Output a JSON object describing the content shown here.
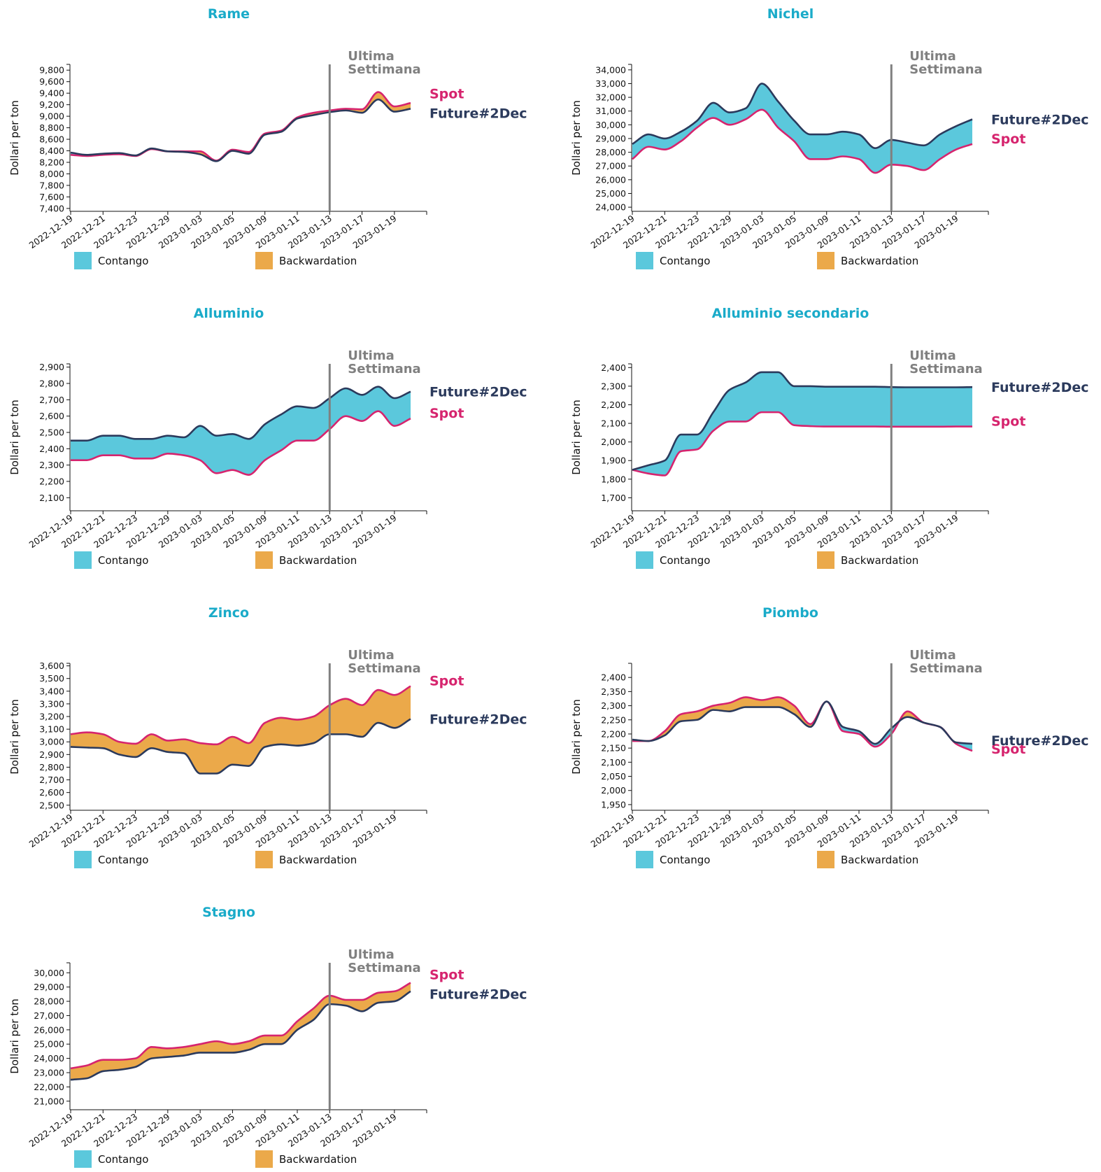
{
  "colors": {
    "title": "#1aabc9",
    "spot": "#d6246e",
    "future": "#2b3a5c",
    "contango": "#5bc8dc",
    "backwardation": "#eba94a",
    "vline": "#808080",
    "axis": "#111111"
  },
  "ylabel": "Dollari per ton",
  "vline_label": [
    "Ultima",
    "Settimana"
  ],
  "legend": [
    "Contango",
    "Backwardation"
  ],
  "series_names": {
    "spot": "Spot",
    "future": "Future#2Dec"
  },
  "chart_data": [
    {
      "type": "area",
      "title": "Rame",
      "x": [
        "2022-12-19",
        "2022-12-20",
        "2022-12-21",
        "2022-12-22",
        "2022-12-23",
        "2022-12-28",
        "2022-12-29",
        "2022-12-30",
        "2023-01-03",
        "2023-01-04",
        "2023-01-05",
        "2023-01-06",
        "2023-01-09",
        "2023-01-10",
        "2023-01-11",
        "2023-01-12",
        "2023-01-13",
        "2023-01-16",
        "2023-01-17",
        "2023-01-18",
        "2023-01-19",
        "2023-01-20"
      ],
      "xticks": [
        "2022-12-19",
        "2022-12-21",
        "2022-12-23",
        "2022-12-29",
        "2023-01-03",
        "2023-01-05",
        "2023-01-09",
        "2023-01-11",
        "2023-01-13",
        "2023-01-17",
        "2023-01-19"
      ],
      "vline_x": "2023-01-13",
      "spot": [
        8330,
        8310,
        8330,
        8340,
        8310,
        8430,
        8390,
        8390,
        8390,
        8230,
        8420,
        8380,
        8700,
        8750,
        8980,
        9060,
        9100,
        9130,
        9120,
        9420,
        9170,
        9230
      ],
      "future": [
        8370,
        8330,
        8350,
        8360,
        8320,
        8440,
        8390,
        8380,
        8340,
        8220,
        8400,
        8350,
        8680,
        8730,
        8960,
        9020,
        9070,
        9100,
        9060,
        9290,
        9080,
        9130
      ],
      "ylim": [
        7350,
        9900
      ],
      "yticks": [
        7400,
        7600,
        7800,
        8000,
        8200,
        8400,
        8600,
        8800,
        9000,
        9200,
        9400,
        9600,
        9800
      ]
    },
    {
      "type": "area",
      "title": "Nichel",
      "x": [
        "2022-12-19",
        "2022-12-20",
        "2022-12-21",
        "2022-12-22",
        "2022-12-23",
        "2022-12-28",
        "2022-12-29",
        "2022-12-30",
        "2023-01-03",
        "2023-01-04",
        "2023-01-05",
        "2023-01-06",
        "2023-01-09",
        "2023-01-10",
        "2023-01-11",
        "2023-01-12",
        "2023-01-13",
        "2023-01-16",
        "2023-01-17",
        "2023-01-18",
        "2023-01-19",
        "2023-01-20"
      ],
      "xticks": [
        "2022-12-19",
        "2022-12-21",
        "2022-12-23",
        "2022-12-29",
        "2023-01-03",
        "2023-01-05",
        "2023-01-09",
        "2023-01-11",
        "2023-01-13",
        "2023-01-17",
        "2023-01-19"
      ],
      "vline_x": "2023-01-13",
      "spot": [
        27500,
        28400,
        28200,
        28800,
        29800,
        30500,
        30000,
        30400,
        31100,
        29800,
        28800,
        27500,
        27500,
        27700,
        27500,
        26500,
        27100,
        27000,
        26700,
        27500,
        28200,
        28600
      ],
      "future": [
        28600,
        29300,
        29000,
        29500,
        30300,
        31600,
        30900,
        31200,
        33000,
        31700,
        30300,
        29300,
        29300,
        29500,
        29300,
        28300,
        28900,
        28700,
        28500,
        29300,
        29900,
        30400
      ],
      "ylim": [
        23700,
        34400
      ],
      "yticks": [
        24000,
        25000,
        26000,
        27000,
        28000,
        29000,
        30000,
        31000,
        32000,
        33000,
        34000
      ]
    },
    {
      "type": "area",
      "title": "Alluminio",
      "x": [
        "2022-12-19",
        "2022-12-20",
        "2022-12-21",
        "2022-12-22",
        "2022-12-23",
        "2022-12-28",
        "2022-12-29",
        "2022-12-30",
        "2023-01-03",
        "2023-01-04",
        "2023-01-05",
        "2023-01-06",
        "2023-01-09",
        "2023-01-10",
        "2023-01-11",
        "2023-01-12",
        "2023-01-13",
        "2023-01-16",
        "2023-01-17",
        "2023-01-18",
        "2023-01-19",
        "2023-01-20"
      ],
      "xticks": [
        "2022-12-19",
        "2022-12-21",
        "2022-12-23",
        "2022-12-29",
        "2023-01-03",
        "2023-01-05",
        "2023-01-09",
        "2023-01-11",
        "2023-01-13",
        "2023-01-17",
        "2023-01-19"
      ],
      "vline_x": "2023-01-13",
      "spot": [
        2330,
        2330,
        2360,
        2360,
        2340,
        2340,
        2370,
        2360,
        2330,
        2250,
        2270,
        2240,
        2330,
        2390,
        2450,
        2450,
        2520,
        2600,
        2570,
        2630,
        2540,
        2585
      ],
      "future": [
        2450,
        2450,
        2480,
        2480,
        2460,
        2460,
        2480,
        2470,
        2540,
        2480,
        2490,
        2460,
        2550,
        2610,
        2660,
        2650,
        2710,
        2770,
        2730,
        2780,
        2710,
        2750
      ],
      "ylim": [
        2020,
        2920
      ],
      "yticks": [
        2100,
        2200,
        2300,
        2400,
        2500,
        2600,
        2700,
        2800,
        2900
      ]
    },
    {
      "type": "area",
      "title": "Alluminio secondario",
      "x": [
        "2022-12-19",
        "2022-12-20",
        "2022-12-21",
        "2022-12-22",
        "2022-12-23",
        "2022-12-28",
        "2022-12-29",
        "2022-12-30",
        "2023-01-03",
        "2023-01-04",
        "2023-01-05",
        "2023-01-06",
        "2023-01-09",
        "2023-01-10",
        "2023-01-11",
        "2023-01-12",
        "2023-01-13",
        "2023-01-16",
        "2023-01-17",
        "2023-01-18",
        "2023-01-19",
        "2023-01-20"
      ],
      "xticks": [
        "2022-12-19",
        "2022-12-21",
        "2022-12-23",
        "2022-12-29",
        "2023-01-03",
        "2023-01-05",
        "2023-01-09",
        "2023-01-11",
        "2023-01-13",
        "2023-01-17",
        "2023-01-19"
      ],
      "vline_x": "2023-01-13",
      "spot": [
        1850,
        1830,
        1820,
        1950,
        1960,
        2060,
        2110,
        2110,
        2160,
        2160,
        2090,
        2085,
        2083,
        2083,
        2083,
        2083,
        2082,
        2082,
        2082,
        2082,
        2083,
        2083
      ],
      "future": [
        1850,
        1875,
        1900,
        2040,
        2040,
        2160,
        2280,
        2320,
        2375,
        2375,
        2300,
        2300,
        2297,
        2297,
        2297,
        2297,
        2295,
        2294,
        2294,
        2294,
        2294,
        2295
      ],
      "ylim": [
        1630,
        2420
      ],
      "yticks": [
        1700,
        1800,
        1900,
        2000,
        2100,
        2200,
        2300,
        2400
      ]
    },
    {
      "type": "area",
      "title": "Zinco",
      "x": [
        "2022-12-19",
        "2022-12-20",
        "2022-12-21",
        "2022-12-22",
        "2022-12-23",
        "2022-12-28",
        "2022-12-29",
        "2022-12-30",
        "2023-01-03",
        "2023-01-04",
        "2023-01-05",
        "2023-01-06",
        "2023-01-09",
        "2023-01-10",
        "2023-01-11",
        "2023-01-12",
        "2023-01-13",
        "2023-01-16",
        "2023-01-17",
        "2023-01-18",
        "2023-01-19",
        "2023-01-20"
      ],
      "xticks": [
        "2022-12-19",
        "2022-12-21",
        "2022-12-23",
        "2022-12-29",
        "2023-01-03",
        "2023-01-05",
        "2023-01-09",
        "2023-01-11",
        "2023-01-13",
        "2023-01-17",
        "2023-01-19"
      ],
      "vline_x": "2023-01-13",
      "spot": [
        3060,
        3075,
        3060,
        3000,
        2985,
        3060,
        3010,
        3020,
        2990,
        2980,
        3040,
        2990,
        3150,
        3190,
        3175,
        3200,
        3290,
        3340,
        3290,
        3410,
        3370,
        3440
      ],
      "future": [
        2960,
        2955,
        2950,
        2900,
        2880,
        2950,
        2920,
        2910,
        2750,
        2750,
        2820,
        2810,
        2960,
        2980,
        2970,
        2990,
        3060,
        3060,
        3040,
        3150,
        3110,
        3180
      ],
      "ylim": [
        2460,
        3620
      ],
      "yticks": [
        2500,
        2600,
        2700,
        2800,
        2900,
        3000,
        3100,
        3200,
        3300,
        3400,
        3500,
        3600
      ]
    },
    {
      "type": "area",
      "title": "Piombo",
      "x": [
        "2022-12-19",
        "2022-12-20",
        "2022-12-21",
        "2022-12-22",
        "2022-12-23",
        "2022-12-28",
        "2022-12-29",
        "2022-12-30",
        "2023-01-03",
        "2023-01-04",
        "2023-01-05",
        "2023-01-06",
        "2023-01-09",
        "2023-01-10",
        "2023-01-11",
        "2023-01-12",
        "2023-01-13",
        "2023-01-16",
        "2023-01-17",
        "2023-01-18",
        "2023-01-19",
        "2023-01-20"
      ],
      "xticks": [
        "2022-12-19",
        "2022-12-21",
        "2022-12-23",
        "2022-12-29",
        "2023-01-03",
        "2023-01-05",
        "2023-01-09",
        "2023-01-11",
        "2023-01-13",
        "2023-01-17",
        "2023-01-19"
      ],
      "vline_x": "2023-01-13",
      "spot": [
        2175,
        2175,
        2210,
        2270,
        2280,
        2300,
        2310,
        2330,
        2320,
        2330,
        2300,
        2235,
        2315,
        2210,
        2200,
        2155,
        2200,
        2280,
        2240,
        2225,
        2165,
        2140
      ],
      "future": [
        2180,
        2175,
        2195,
        2245,
        2250,
        2285,
        2280,
        2295,
        2295,
        2295,
        2270,
        2225,
        2315,
        2225,
        2210,
        2165,
        2220,
        2260,
        2240,
        2225,
        2170,
        2165
      ],
      "ylim": [
        1930,
        2450
      ],
      "yticks": [
        1950,
        2000,
        2050,
        2100,
        2150,
        2200,
        2250,
        2300,
        2350,
        2400
      ]
    },
    {
      "type": "area",
      "title": "Stagno",
      "x": [
        "2022-12-19",
        "2022-12-20",
        "2022-12-21",
        "2022-12-22",
        "2022-12-23",
        "2022-12-28",
        "2022-12-29",
        "2022-12-30",
        "2023-01-03",
        "2023-01-04",
        "2023-01-05",
        "2023-01-06",
        "2023-01-09",
        "2023-01-10",
        "2023-01-11",
        "2023-01-12",
        "2023-01-13",
        "2023-01-16",
        "2023-01-17",
        "2023-01-18",
        "2023-01-19",
        "2023-01-20"
      ],
      "xticks": [
        "2022-12-19",
        "2022-12-21",
        "2022-12-23",
        "2022-12-29",
        "2023-01-03",
        "2023-01-05",
        "2023-01-09",
        "2023-01-11",
        "2023-01-13",
        "2023-01-17",
        "2023-01-19"
      ],
      "vline_x": "2023-01-13",
      "spot": [
        23300,
        23500,
        23900,
        23900,
        24000,
        24800,
        24700,
        24800,
        25000,
        25200,
        25000,
        25200,
        25600,
        25600,
        26600,
        27500,
        28400,
        28100,
        28100,
        28600,
        28700,
        29300
      ],
      "future": [
        22500,
        22600,
        23100,
        23200,
        23400,
        24000,
        24100,
        24200,
        24400,
        24400,
        24400,
        24600,
        25000,
        25000,
        26000,
        26700,
        27800,
        27700,
        27300,
        27900,
        28000,
        28700
      ],
      "ylim": [
        20400,
        30700
      ],
      "yticks": [
        21000,
        22000,
        23000,
        24000,
        25000,
        26000,
        27000,
        28000,
        29000,
        30000
      ]
    }
  ]
}
